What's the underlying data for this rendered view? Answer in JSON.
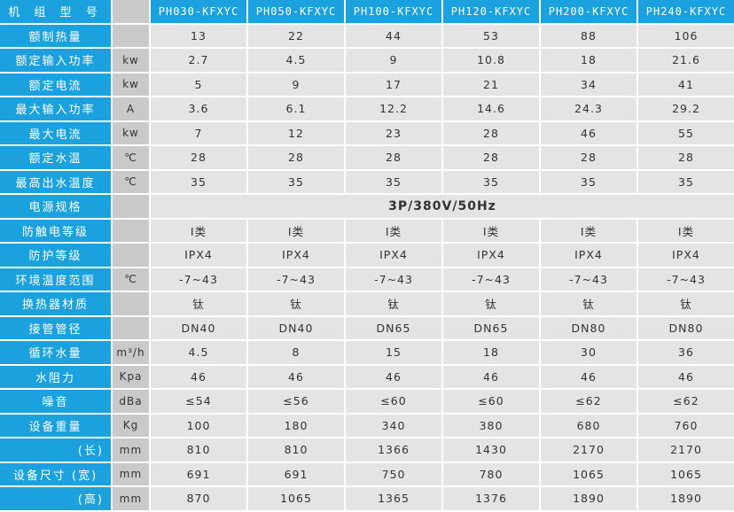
{
  "header": {
    "label": "机 组 型 号",
    "unit": "",
    "models": [
      "PH030-KFXYC",
      "PH050-KFXYC",
      "PH100-KFXYC",
      "PH120-KFXYC",
      "PH200-KFXYC",
      "PH240-KFXYC"
    ]
  },
  "rows": [
    {
      "label": "额制热量",
      "unit": "",
      "values": [
        "13",
        "22",
        "44",
        "53",
        "88",
        "106"
      ]
    },
    {
      "label": "额定输入功率",
      "unit": "kw",
      "values": [
        "2.7",
        "4.5",
        "9",
        "10.8",
        "18",
        "21.6"
      ]
    },
    {
      "label": "额定电流",
      "unit": "kw",
      "values": [
        "5",
        "9",
        "17",
        "21",
        "34",
        "41"
      ]
    },
    {
      "label": "最大输入功率",
      "unit": "A",
      "values": [
        "3.6",
        "6.1",
        "12.2",
        "14.6",
        "24.3",
        "29.2"
      ]
    },
    {
      "label": "最大电流",
      "unit": "kw",
      "values": [
        "7",
        "12",
        "23",
        "28",
        "46",
        "55"
      ]
    },
    {
      "label": "额定水温",
      "unit": "℃",
      "values": [
        "28",
        "28",
        "28",
        "28",
        "28",
        "28"
      ]
    },
    {
      "label": "最高出水温度",
      "unit": "℃",
      "values": [
        "35",
        "35",
        "35",
        "35",
        "35",
        "35"
      ]
    },
    {
      "label": "电源规格",
      "unit": "",
      "span": "3P/380V/50Hz"
    },
    {
      "label": "防触电等级",
      "unit": "",
      "values": [
        "Ⅰ类",
        "Ⅰ类",
        "Ⅰ类",
        "Ⅰ类",
        "Ⅰ类",
        "Ⅰ类"
      ]
    },
    {
      "label": "防护等级",
      "unit": "",
      "values": [
        "IPX4",
        "IPX4",
        "IPX4",
        "IPX4",
        "IPX4",
        "IPX4"
      ]
    },
    {
      "label": "环境温度范围",
      "unit": "℃",
      "values": [
        "-7~43",
        "-7~43",
        "-7~43",
        "-7~43",
        "-7~43",
        "-7~43"
      ]
    },
    {
      "label": "换热器材质",
      "unit": "",
      "values": [
        "钛",
        "钛",
        "钛",
        "钛",
        "钛",
        "钛"
      ]
    },
    {
      "label": "接管管径",
      "unit": "",
      "values": [
        "DN40",
        "DN40",
        "DN65",
        "DN65",
        "DN80",
        "DN80"
      ]
    },
    {
      "label": "循环水量",
      "unit": "m³/h",
      "values": [
        "4.5",
        "8",
        "15",
        "18",
        "30",
        "36"
      ]
    },
    {
      "label": "水阻力",
      "unit": "Kpa",
      "values": [
        "46",
        "46",
        "46",
        "46",
        "46",
        "46"
      ]
    },
    {
      "label": "噪音",
      "unit": "dBa",
      "values": [
        "≤54",
        "≤56",
        "≤60",
        "≤60",
        "≤62",
        "≤62"
      ]
    },
    {
      "label": "设备重量",
      "unit": "Kg",
      "values": [
        "100",
        "180",
        "340",
        "380",
        "680",
        "760"
      ]
    },
    {
      "label": "(长)",
      "unit": "mm",
      "values": [
        "810",
        "810",
        "1366",
        "1430",
        "2170",
        "2170"
      ],
      "align": "right"
    },
    {
      "label": "设备尺寸 (宽)",
      "unit": "mm",
      "values": [
        "691",
        "691",
        "750",
        "780",
        "1065",
        "1065"
      ]
    },
    {
      "label": "(高)",
      "unit": "mm",
      "values": [
        "870",
        "1065",
        "1365",
        "1376",
        "1890",
        "1890"
      ],
      "align": "right"
    }
  ],
  "colors": {
    "label_bg": "#1ba1de",
    "unit_bg": "#c9c9c9",
    "cell_bg": "#e4e4e4"
  }
}
